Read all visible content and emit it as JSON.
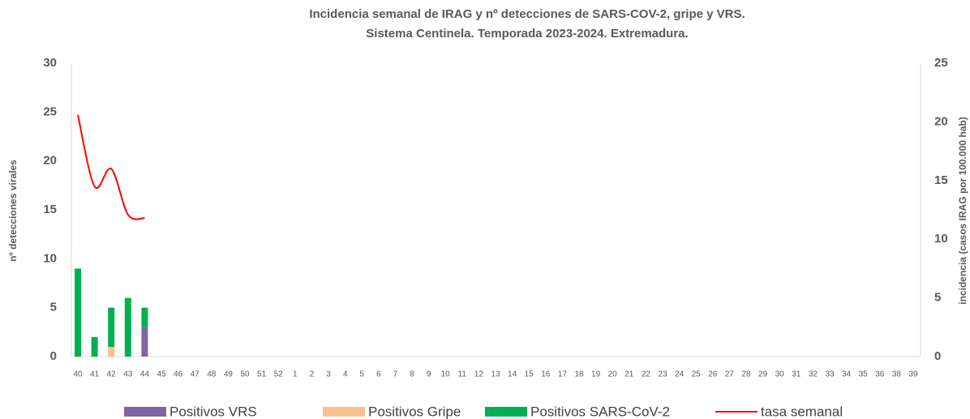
{
  "chart_data": {
    "type": "bar",
    "title": "Incidencia semanal de IRAG y nº detecciones de SARS-COV-2, gripe y VRS.",
    "subtitle": "Sistema Centinela. Temporada 2023-2024. Extremadura.",
    "y_label": "nº detecciones virales",
    "y2_label": "incidencia (casos IRAG por 100.000 hab)",
    "categories": [
      "40",
      "41",
      "42",
      "43",
      "44",
      "45",
      "46",
      "47",
      "48",
      "49",
      "50",
      "51",
      "52",
      "1",
      "2",
      "3",
      "4",
      "5",
      "6",
      "7",
      "8",
      "9",
      "10",
      "11",
      "12",
      "13",
      "14",
      "15",
      "16",
      "17",
      "18",
      "19",
      "20",
      "21",
      "22",
      "23",
      "24",
      "25",
      "26",
      "27",
      "28",
      "29",
      "30",
      "31",
      "32",
      "33",
      "34",
      "35",
      "36",
      "38",
      "39"
    ],
    "series": [
      {
        "name": "Positivos VRS",
        "color": "#8064a2",
        "type": "bar",
        "values": [
          0,
          0,
          0,
          0,
          3,
          null,
          null,
          null,
          null,
          null,
          null,
          null,
          null,
          null,
          null,
          null,
          null,
          null,
          null,
          null,
          null,
          null,
          null,
          null,
          null,
          null,
          null,
          null,
          null,
          null,
          null,
          null,
          null,
          null,
          null,
          null,
          null,
          null,
          null,
          null,
          null,
          null,
          null,
          null,
          null,
          null,
          null,
          null,
          null,
          null,
          null
        ]
      },
      {
        "name": "Positivos Gripe",
        "color": "#fac090",
        "type": "bar",
        "values": [
          0,
          0,
          1,
          0,
          0,
          null,
          null,
          null,
          null,
          null,
          null,
          null,
          null,
          null,
          null,
          null,
          null,
          null,
          null,
          null,
          null,
          null,
          null,
          null,
          null,
          null,
          null,
          null,
          null,
          null,
          null,
          null,
          null,
          null,
          null,
          null,
          null,
          null,
          null,
          null,
          null,
          null,
          null,
          null,
          null,
          null,
          null,
          null,
          null,
          null,
          null
        ]
      },
      {
        "name": "Positivos SARS-CoV-2",
        "color": "#00b050",
        "type": "bar",
        "values": [
          9,
          2,
          4,
          6,
          2,
          null,
          null,
          null,
          null,
          null,
          null,
          null,
          null,
          null,
          null,
          null,
          null,
          null,
          null,
          null,
          null,
          null,
          null,
          null,
          null,
          null,
          null,
          null,
          null,
          null,
          null,
          null,
          null,
          null,
          null,
          null,
          null,
          null,
          null,
          null,
          null,
          null,
          null,
          null,
          null,
          null,
          null,
          null,
          null,
          null,
          null
        ]
      },
      {
        "name": "tasa semanal",
        "color": "#ff0000",
        "type": "line",
        "axis": "y2",
        "values": [
          20.6,
          14.5,
          16,
          12.1,
          11.8,
          null,
          null,
          null,
          null,
          null,
          null,
          null,
          null,
          null,
          null,
          null,
          null,
          null,
          null,
          null,
          null,
          null,
          null,
          null,
          null,
          null,
          null,
          null,
          null,
          null,
          null,
          null,
          null,
          null,
          null,
          null,
          null,
          null,
          null,
          null,
          null,
          null,
          null,
          null,
          null,
          null,
          null,
          null,
          null,
          null,
          null
        ]
      }
    ],
    "ylim": [
      0,
      30
    ],
    "yticks": [
      0,
      5,
      10,
      15,
      20,
      25,
      30
    ],
    "y2lim": [
      0,
      25
    ],
    "y2ticks": [
      0,
      5,
      10,
      15,
      20,
      25
    ],
    "stacked": true,
    "grid": false,
    "legend": "bottom"
  }
}
